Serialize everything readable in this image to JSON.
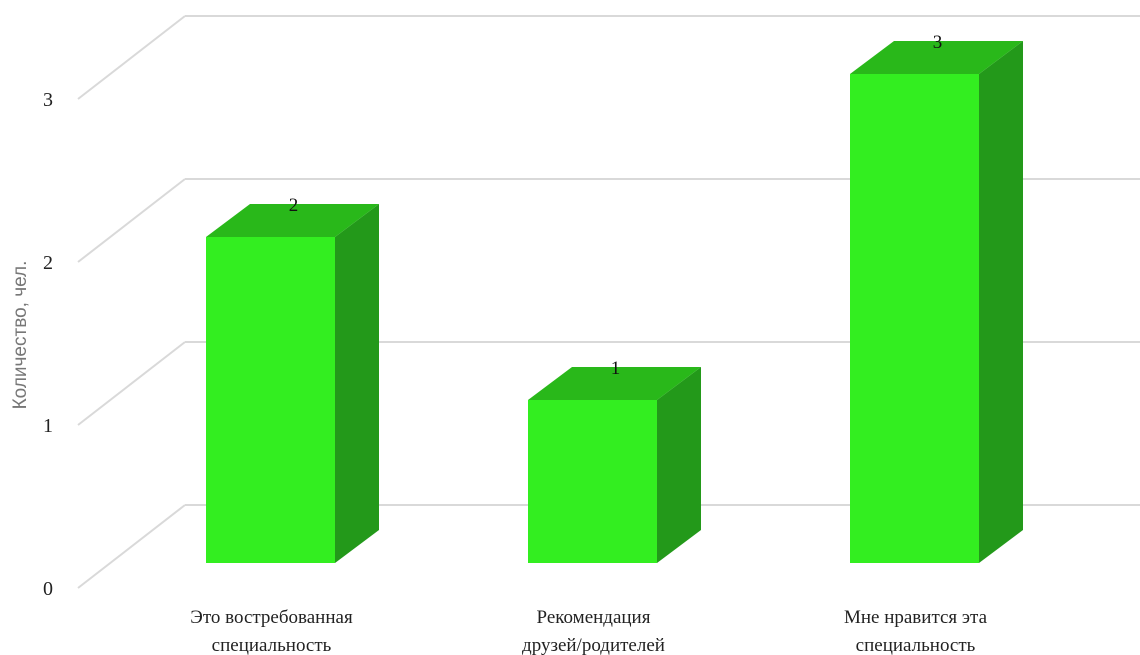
{
  "chart_data": {
    "type": "bar",
    "style": "3d-column",
    "categories": [
      [
        "Это востребованная",
        "специальность"
      ],
      [
        "Рекомендация",
        "друзей/родителей"
      ],
      [
        "Мне нравится эта",
        "специальность"
      ]
    ],
    "values": [
      2,
      1,
      3
    ],
    "data_labels": [
      "2",
      "1",
      "3"
    ],
    "ylabel": "Количество, чел.",
    "ylim": [
      0,
      3
    ],
    "yticks": [
      "0",
      "1",
      "2",
      "3"
    ],
    "grid": true,
    "colors": {
      "front": "#33ee20",
      "top": "#29b81a",
      "side": "#23991a",
      "grid": "#d9d9d9"
    }
  }
}
